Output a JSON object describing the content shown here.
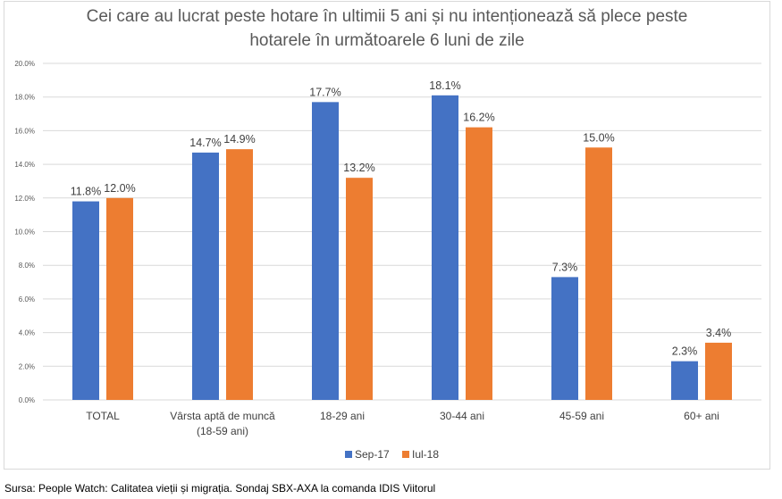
{
  "chart_data": {
    "type": "bar",
    "title_lines": [
      "Cei care au lucrat peste hotare în ultimii 5 ani și nu intenționează să plece peste",
      "hotarele în următoarele 6 luni de zile"
    ],
    "categories": [
      [
        "TOTAL"
      ],
      [
        "Vârsta aptă de muncă",
        "(18-59 ani)"
      ],
      [
        "18-29 ani"
      ],
      [
        "30-44 ani"
      ],
      [
        "45-59 ani"
      ],
      [
        "60+ ani"
      ]
    ],
    "series": [
      {
        "name": "Sep-17",
        "color": "#4472c4",
        "values": [
          11.8,
          14.7,
          17.7,
          18.1,
          7.3,
          2.3
        ],
        "labels": [
          "11.8%",
          "14.7%",
          "17.7%",
          "18.1%",
          "7.3%",
          "2.3%"
        ]
      },
      {
        "name": "Iul-18",
        "color": "#ed7d31",
        "values": [
          12.0,
          14.9,
          13.2,
          16.2,
          15.0,
          3.4
        ],
        "labels": [
          "12.0%",
          "14.9%",
          "13.2%",
          "16.2%",
          "15.0%",
          "3.4%"
        ]
      }
    ],
    "ylim": [
      0,
      20
    ],
    "yticks": [
      "0.0%",
      "2.0%",
      "4.0%",
      "6.0%",
      "8.0%",
      "10.0%",
      "12.0%",
      "14.0%",
      "16.0%",
      "18.0%",
      "20.0%"
    ],
    "grid": true,
    "legend_position": "bottom"
  },
  "source_text": "Sursa: People Watch: Calitatea vieții și migrația. Sondaj SBX-AXA la comanda IDIS Viitorul"
}
